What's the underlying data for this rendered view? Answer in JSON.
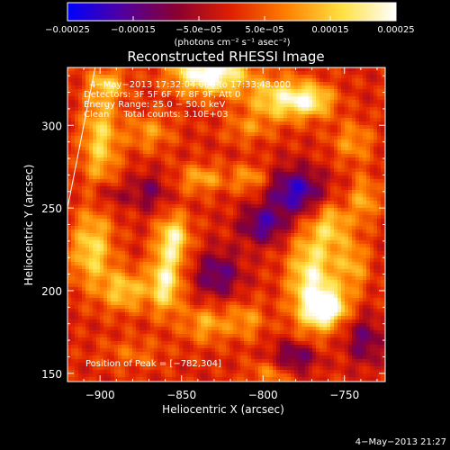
{
  "chart_data": {
    "type": "heatmap",
    "title": "Reconstructed RHESSI Image",
    "xlabel": "Heliocentric X (arcsec)",
    "ylabel": "Heliocentric Y (arcsec)",
    "xlim": [
      -920,
      -725
    ],
    "ylim": [
      145,
      335
    ],
    "x_ticks": [
      -900,
      -850,
      -800,
      -750
    ],
    "x_tick_labels": [
      "−900",
      "−850",
      "−800",
      "−750"
    ],
    "y_ticks": [
      150,
      200,
      250,
      300
    ],
    "y_tick_labels": [
      "150",
      "200",
      "250",
      "300"
    ],
    "grid": false,
    "colorbar": {
      "range": [
        -0.00025,
        0.00025
      ],
      "ticks": [
        -0.00025,
        -0.00015,
        -5e-05,
        5e-05,
        0.00015,
        0.00025
      ],
      "tick_labels": [
        "−0.00025",
        "−0.00015",
        "−5.0e−05",
        "5.0e−05",
        "0.00015",
        "0.00025"
      ],
      "unit": "(photons cm⁻² s⁻¹ asec⁻²)",
      "colors": [
        "#0000ff",
        "#5000a0",
        "#8a0030",
        "#e02000",
        "#ff8000",
        "#ffe040",
        "#ffffff"
      ]
    },
    "annotations": {
      "time_range": "4−May−2013 17:32:04.000 to 17:33:48.000",
      "detectors": "Detectors: 3F 5F 6F 7F 8F 9F, Att 0",
      "energy_range": "Energy Range: 25.0 − 50.0 keV",
      "clean_counts": "Clean     Total counts: 3.10E+03",
      "peak_position": "Position of Peak = [−782,304]",
      "peak": [
        -782,
        304
      ]
    },
    "limb_line": [
      [
        -920,
        250
      ],
      [
        -903,
        335
      ]
    ],
    "blobs": [
      {
        "x": -833,
        "y": 332,
        "sx": 16,
        "sy": 9,
        "v": 0.00028
      },
      {
        "x": -790,
        "y": 316,
        "sx": 14,
        "sy": 9,
        "v": 0.00018
      },
      {
        "x": -770,
        "y": 315,
        "sx": 10,
        "sy": 7,
        "v": 0.00016
      },
      {
        "x": -900,
        "y": 292,
        "sx": 8,
        "sy": 22,
        "v": 0.00016
      },
      {
        "x": -870,
        "y": 296,
        "sx": 10,
        "sy": 8,
        "v": 0.0001
      },
      {
        "x": -810,
        "y": 298,
        "sx": 10,
        "sy": 6,
        "v": 8e-05
      },
      {
        "x": -905,
        "y": 225,
        "sx": 9,
        "sy": 16,
        "v": 0.00017
      },
      {
        "x": -885,
        "y": 200,
        "sx": 10,
        "sy": 9,
        "v": 0.00015
      },
      {
        "x": -855,
        "y": 232,
        "sx": 7,
        "sy": 10,
        "v": 0.0002
      },
      {
        "x": -860,
        "y": 205,
        "sx": 7,
        "sy": 13,
        "v": 0.00021
      },
      {
        "x": -838,
        "y": 268,
        "sx": 10,
        "sy": 6,
        "v": 0.00012
      },
      {
        "x": -808,
        "y": 268,
        "sx": 8,
        "sy": 6,
        "v": 0.00011
      },
      {
        "x": -835,
        "y": 180,
        "sx": 10,
        "sy": 8,
        "v": 0.00012
      },
      {
        "x": -810,
        "y": 182,
        "sx": 8,
        "sy": 8,
        "v": 0.0001
      },
      {
        "x": -770,
        "y": 205,
        "sx": 10,
        "sy": 22,
        "v": 0.00022
      },
      {
        "x": -758,
        "y": 240,
        "sx": 8,
        "sy": 10,
        "v": 0.00013
      },
      {
        "x": -745,
        "y": 215,
        "sx": 7,
        "sy": 12,
        "v": 0.00012
      },
      {
        "x": -760,
        "y": 190,
        "sx": 8,
        "sy": 7,
        "v": 0.00025
      },
      {
        "x": -745,
        "y": 290,
        "sx": 9,
        "sy": 9,
        "v": 0.0001
      },
      {
        "x": -738,
        "y": 255,
        "sx": 6,
        "sy": 10,
        "v": 0.00012
      },
      {
        "x": -795,
        "y": 150,
        "sx": 10,
        "sy": 6,
        "v": 9e-05
      },
      {
        "x": -880,
        "y": 162,
        "sx": 14,
        "sy": 7,
        "v": 6e-05
      },
      {
        "x": -895,
        "y": 325,
        "sx": 8,
        "sy": 6,
        "v": 0.00012
      },
      {
        "x": -800,
        "y": 240,
        "sx": 10,
        "sy": 8,
        "v": -0.00016
      },
      {
        "x": -780,
        "y": 260,
        "sx": 12,
        "sy": 10,
        "v": -0.0002
      },
      {
        "x": -828,
        "y": 210,
        "sx": 10,
        "sy": 10,
        "v": -0.00014
      },
      {
        "x": -780,
        "y": 160,
        "sx": 10,
        "sy": 7,
        "v": -0.00015
      },
      {
        "x": -738,
        "y": 170,
        "sx": 8,
        "sy": 10,
        "v": -0.00012
      },
      {
        "x": -870,
        "y": 260,
        "sx": 8,
        "sy": 8,
        "v": -0.0001
      },
      {
        "x": -895,
        "y": 258,
        "sx": 8,
        "sy": 6,
        "v": -9e-05
      }
    ]
  },
  "footer": {
    "timestamp": "4−May−2013 21:27"
  }
}
